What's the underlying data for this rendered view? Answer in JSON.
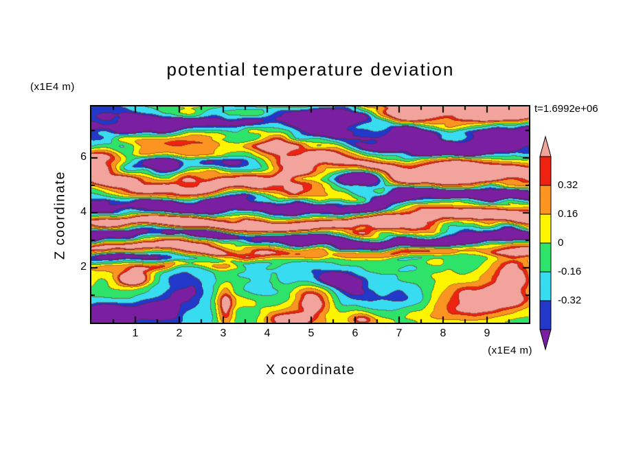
{
  "title": "potential temperature deviation",
  "annotations": {
    "time_label": "t=1.6992e+06",
    "z_axis_units": "(x1E4 m)",
    "x_axis_units": "(x1E4 m)"
  },
  "axes": {
    "x": {
      "label": "X coordinate",
      "ticks": [
        1,
        2,
        3,
        4,
        5,
        6,
        7,
        8,
        9
      ],
      "range": [
        0,
        9.95
      ]
    },
    "z": {
      "label": "Z coordinate",
      "ticks": [
        2,
        4,
        6
      ],
      "range": [
        0,
        7.87
      ]
    }
  },
  "colorbar": {
    "arrow_top_color": "#f2a39c",
    "arrow_bottom_color": "#7b1fa2",
    "segment_colors": [
      "#ee2211",
      "#fb9420",
      "#fdf400",
      "#2ee36a",
      "#38dcf0",
      "#2238c8"
    ],
    "boundary_labels": [
      "0.32",
      "0.16",
      "0",
      "-0.16",
      "-0.32"
    ],
    "boundary_values": [
      0.32,
      0.16,
      0,
      -0.16,
      -0.32
    ]
  },
  "chart_data": {
    "type": "filled_contour",
    "title": "potential temperature deviation",
    "xlabel": "X coordinate",
    "ylabel": "Z coordinate",
    "x_units": "x1E4 m",
    "z_units": "x1E4 m",
    "x_ticks": [
      1,
      2,
      3,
      4,
      5,
      6,
      7,
      8,
      9
    ],
    "z_ticks": [
      2,
      4,
      6
    ],
    "xlim": [
      0,
      9.95
    ],
    "zlim": [
      0,
      7.87
    ],
    "time_annotation": "t=1.6992e+06",
    "contour_levels": [
      0.4,
      0.32,
      0.16,
      0,
      -0.16,
      -0.32,
      -0.4
    ],
    "level_colors": {
      "above_0.40": "#f2a39c",
      "0.32_to_0.40": "#ee2211",
      "0.16_to_0.32": "#fb9420",
      "0.00_to_0.16": "#fdf400",
      "-0.16_to_0.00": "#2ee36a",
      "-0.32_to_-0.16": "#38dcf0",
      "-0.40_to_-0.32": "#2238c8",
      "below_-0.40": "#7b1fa2"
    },
    "legend_position": "right",
    "grid": false
  }
}
